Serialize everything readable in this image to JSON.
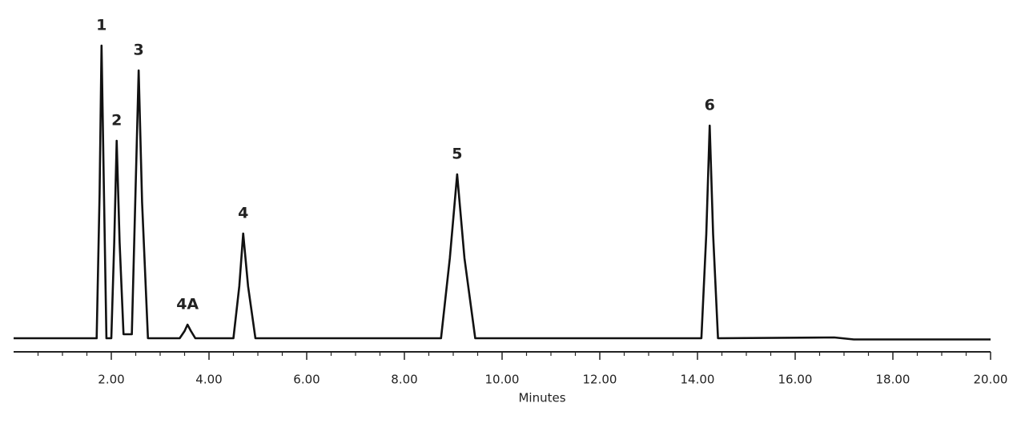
{
  "chart_data": {
    "type": "line",
    "x_label": "Minutes",
    "color": "#111111",
    "xlim": [
      0,
      20
    ],
    "ylim": [
      0,
      400
    ],
    "xticks": [
      {
        "value": 2,
        "label": "2.00"
      },
      {
        "value": 4,
        "label": "4.00"
      },
      {
        "value": 6,
        "label": "6.00"
      },
      {
        "value": 8,
        "label": "8.00"
      },
      {
        "value": 10,
        "label": "10.00"
      },
      {
        "value": 12,
        "label": "12.00"
      },
      {
        "value": 14,
        "label": "14.00"
      },
      {
        "value": 16,
        "label": "16.00"
      },
      {
        "value": 18,
        "label": "18.00"
      },
      {
        "value": 20,
        "label": "20.00"
      }
    ],
    "minor_xticks": [
      0.5,
      1,
      1.5,
      2.5,
      3,
      3.5,
      4.5,
      5,
      5.5,
      6.5,
      7,
      7.5,
      8.5,
      9,
      9.5,
      10.5,
      11,
      11.5,
      12.5,
      13,
      13.5,
      14.5,
      15,
      15.5,
      16.5,
      17,
      17.5,
      18.5,
      19,
      19.5
    ],
    "x": [
      0,
      1.7,
      1.76,
      1.8,
      1.85,
      1.9,
      2.0,
      2.06,
      2.11,
      2.17,
      2.25,
      2.42,
      2.49,
      2.56,
      2.63,
      2.75,
      3.4,
      3.5,
      3.56,
      3.63,
      3.72,
      4.5,
      4.62,
      4.7,
      4.8,
      4.95,
      8.75,
      8.93,
      9.08,
      9.23,
      9.45,
      14.08,
      14.18,
      14.25,
      14.32,
      14.42,
      16.8,
      17.2,
      20
    ],
    "values": [
      0,
      0,
      180,
      366,
      180,
      0,
      0,
      120,
      247,
      120,
      5,
      5,
      170,
      335,
      170,
      0,
      0,
      9,
      17,
      9,
      0,
      0,
      65,
      131,
      65,
      0,
      0,
      100,
      205,
      100,
      0,
      0,
      130,
      266,
      130,
      0,
      1,
      -1.5,
      -1.5
    ],
    "annotations": [
      {
        "text": "1",
        "x": 1.8,
        "y": 366
      },
      {
        "text": "2",
        "x": 2.11,
        "y": 247
      },
      {
        "text": "3",
        "x": 2.56,
        "y": 335
      },
      {
        "text": "4A",
        "x": 3.56,
        "y": 17
      },
      {
        "text": "4",
        "x": 4.7,
        "y": 131
      },
      {
        "text": "5",
        "x": 9.08,
        "y": 205
      },
      {
        "text": "6",
        "x": 14.25,
        "y": 266
      }
    ]
  }
}
